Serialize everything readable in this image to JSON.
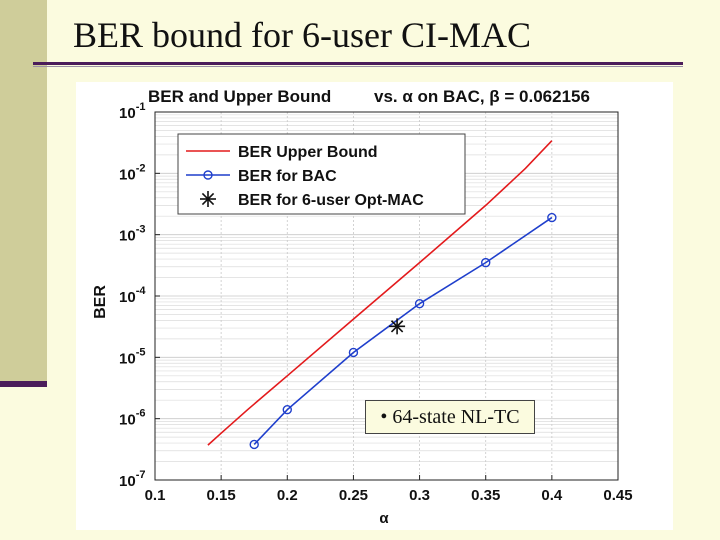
{
  "slide": {
    "title": "BER bound for 6-user CI-MAC",
    "annotation": "• 64-state NL-TC"
  },
  "chart_data": {
    "type": "line",
    "title_part1": "BER and Upper Bound",
    "title_part2": "vs. α on BAC, β = 0.062156",
    "xlabel": "α",
    "ylabel": "BER",
    "xlim": [
      0.1,
      0.45
    ],
    "ylim_log10": [
      -7,
      -1
    ],
    "yscale": "log",
    "grid": true,
    "legend_position": "top-left",
    "x_ticks": [
      "0.1",
      "0.15",
      "0.2",
      "0.25",
      "0.3",
      "0.35",
      "0.4",
      "0.45"
    ],
    "y_ticks": [
      {
        "base": "10",
        "exp": "-7"
      },
      {
        "base": "10",
        "exp": "-6"
      },
      {
        "base": "10",
        "exp": "-5"
      },
      {
        "base": "10",
        "exp": "-4"
      },
      {
        "base": "10",
        "exp": "-3"
      },
      {
        "base": "10",
        "exp": "-2"
      },
      {
        "base": "10",
        "exp": "-1"
      }
    ],
    "series": [
      {
        "name": "BER Upper Bound",
        "color": "#e31a1c",
        "marker": "none",
        "x": [
          0.14,
          0.15,
          0.17,
          0.2,
          0.25,
          0.3,
          0.35,
          0.38,
          0.4
        ],
        "y": [
          3.7e-07,
          5.8e-07,
          1.4e-06,
          5e-06,
          4.2e-05,
          0.00035,
          0.003,
          0.012,
          0.034
        ]
      },
      {
        "name": "BER for BAC",
        "color": "#1f3fcc",
        "marker": "circle",
        "x": [
          0.175,
          0.2,
          0.25,
          0.3,
          0.35,
          0.4
        ],
        "y": [
          3.8e-07,
          1.4e-06,
          1.2e-05,
          7.5e-05,
          0.00035,
          0.0019
        ]
      },
      {
        "name": "BER for 6-user Opt-MAC",
        "color": "#111111",
        "marker": "asterisk",
        "x": [
          0.283
        ],
        "y": [
          3.2e-05
        ]
      }
    ]
  }
}
